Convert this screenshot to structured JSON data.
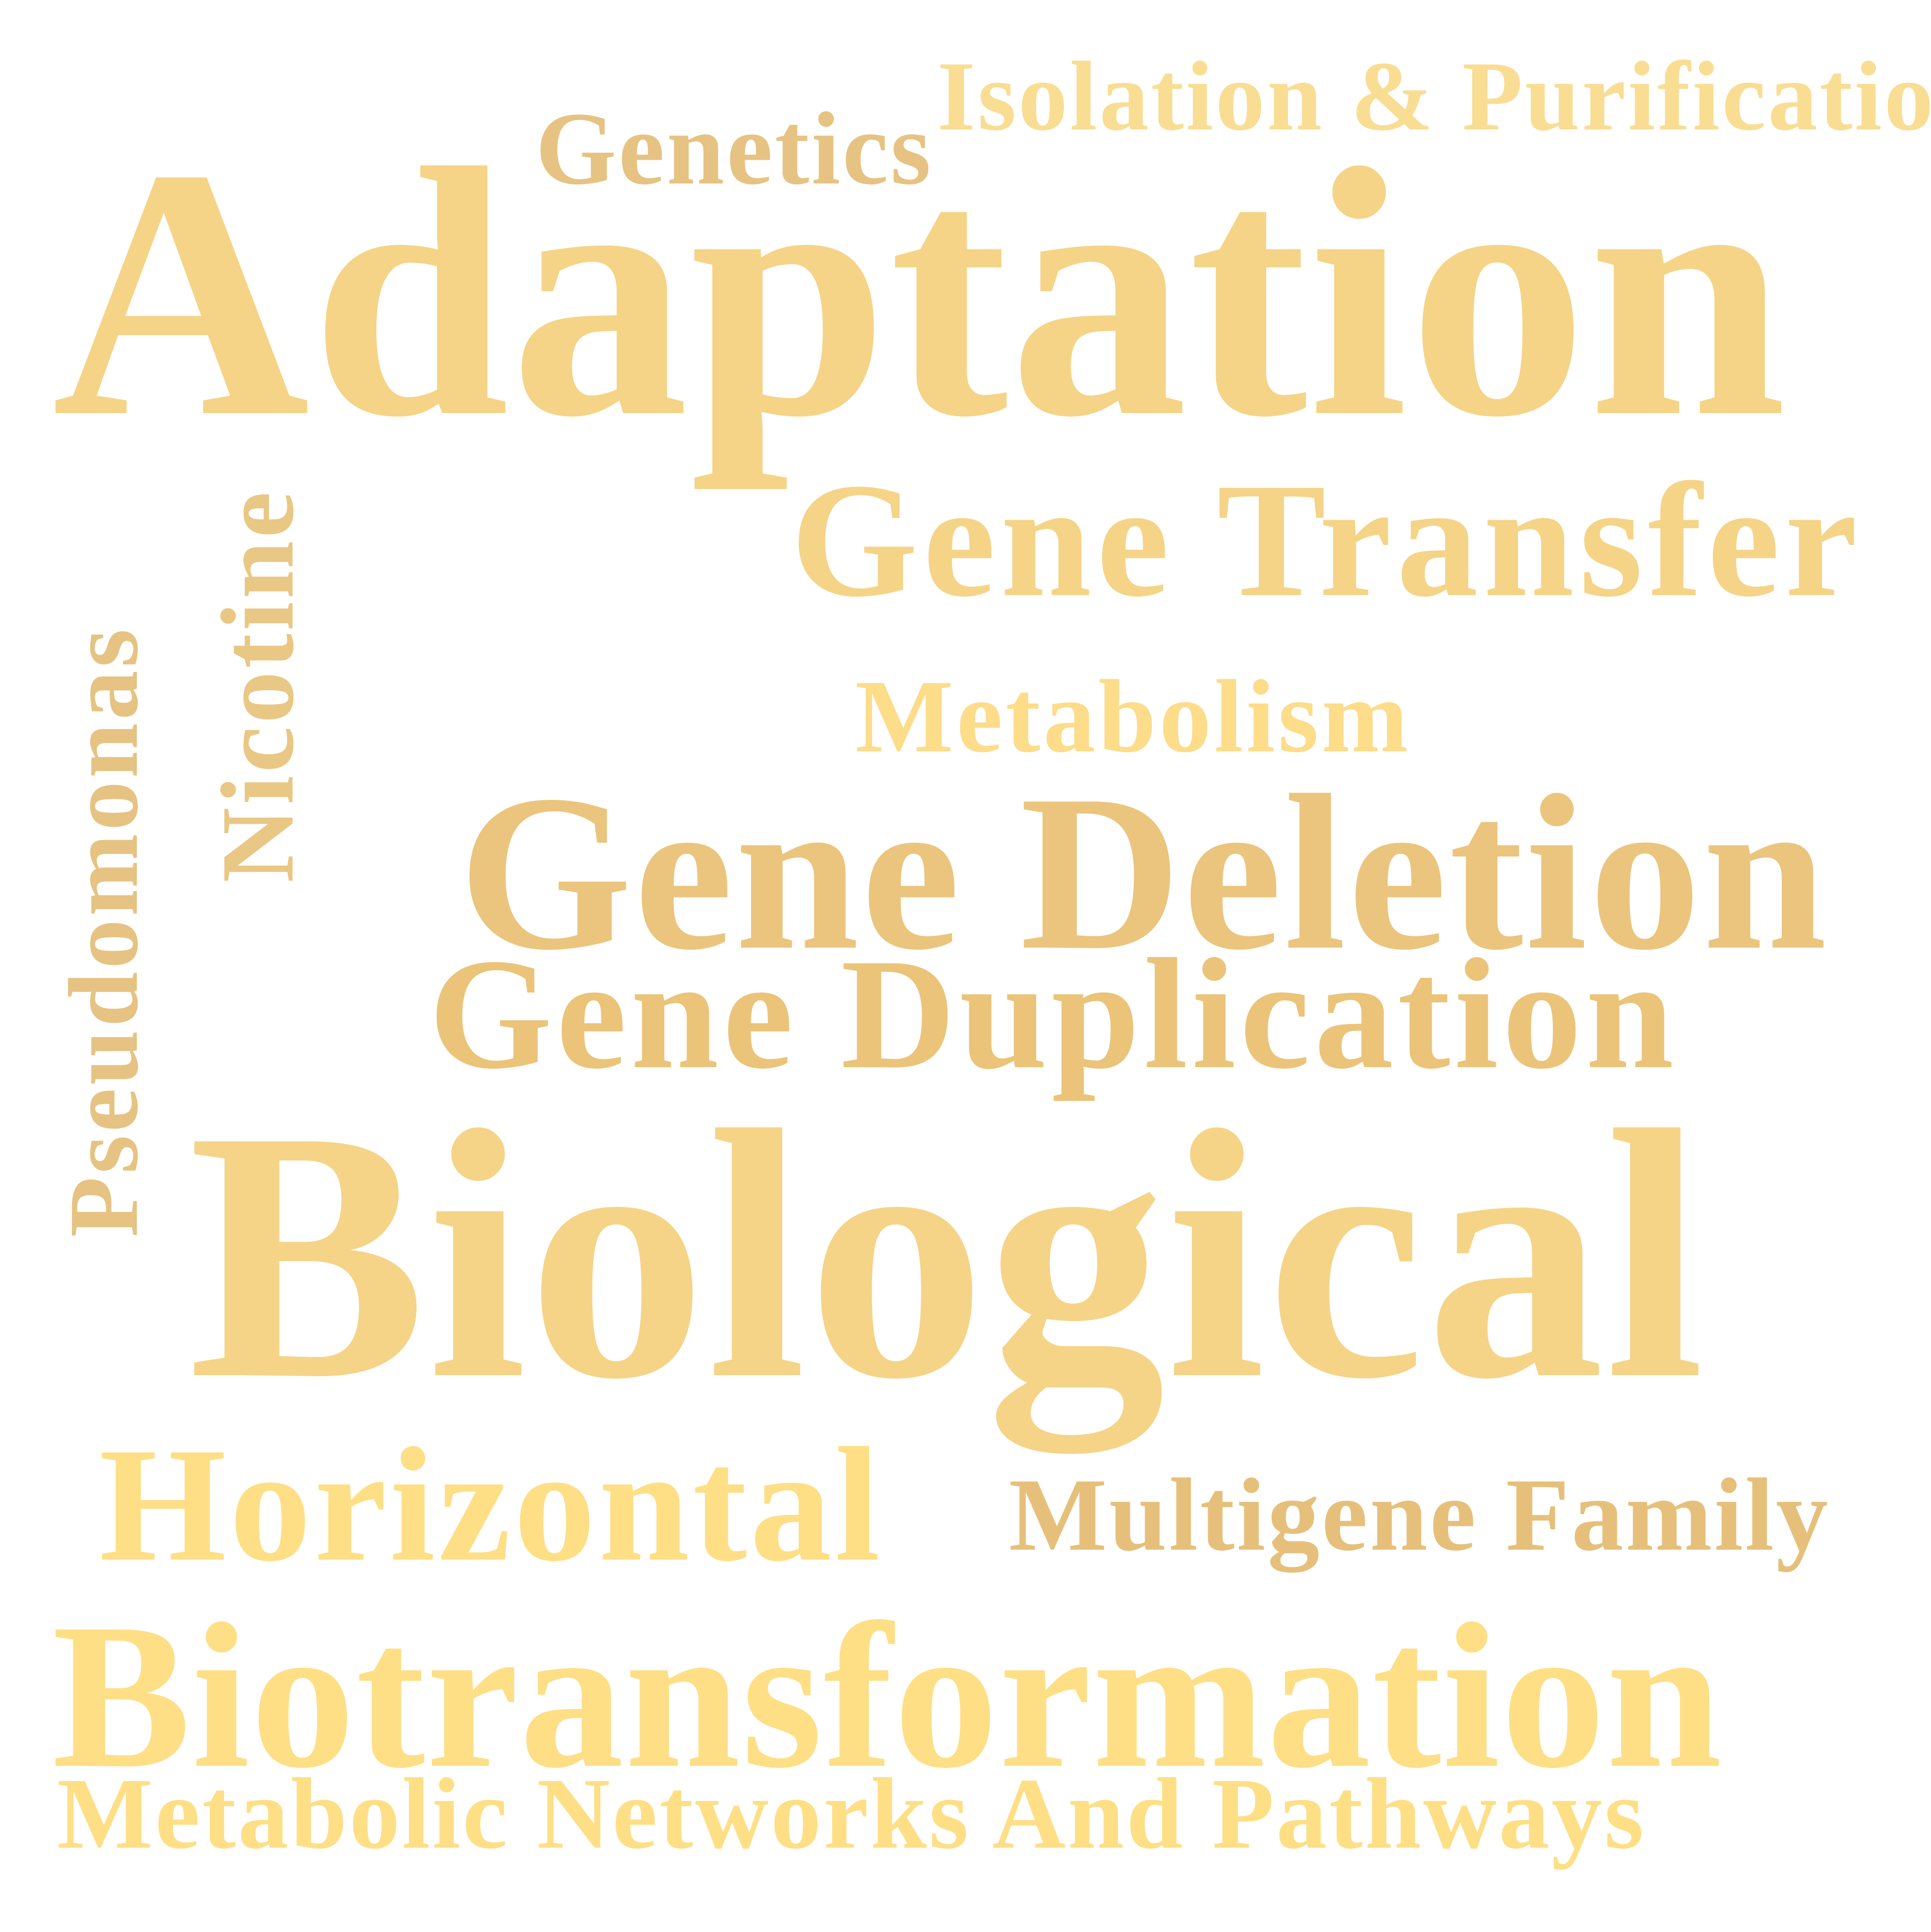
{
  "words": [
    {
      "id": "isolation",
      "text": "Isolation & Purification",
      "color": "#F9DD93"
    },
    {
      "id": "genetics",
      "text": "Genetics",
      "color": "#E6C382"
    },
    {
      "id": "adaptation",
      "text": "Adaptation",
      "color": "#F5D487"
    },
    {
      "id": "transfer",
      "text": "Gene Transfer",
      "color": "#F5D487"
    },
    {
      "id": "metabolism",
      "text": "Metabolism",
      "color": "#FDDC8A"
    },
    {
      "id": "deletion",
      "text": "Gene Deletion",
      "color": "#EBC57D"
    },
    {
      "id": "duplication",
      "text": "Gene Duplication",
      "color": "#EBC47A"
    },
    {
      "id": "biological",
      "text": "Biological",
      "color": "#F5D487"
    },
    {
      "id": "horizontal",
      "text": "Horizontal",
      "color": "#FEDF86"
    },
    {
      "id": "multigene",
      "text": "Multigene Family",
      "color": "#E6C07B"
    },
    {
      "id": "biotrans",
      "text": "Biotransformation",
      "color": "#FEDF86"
    },
    {
      "id": "networks",
      "text": "Metabolic Networks And Pathways",
      "color": "#FEDF86"
    },
    {
      "id": "pseudomonas",
      "text": "Pseudomonas",
      "color": "#E6C382",
      "orientation": "vertical"
    },
    {
      "id": "nicotine",
      "text": "Nicotine",
      "color": "#E9C784",
      "orientation": "vertical"
    }
  ]
}
